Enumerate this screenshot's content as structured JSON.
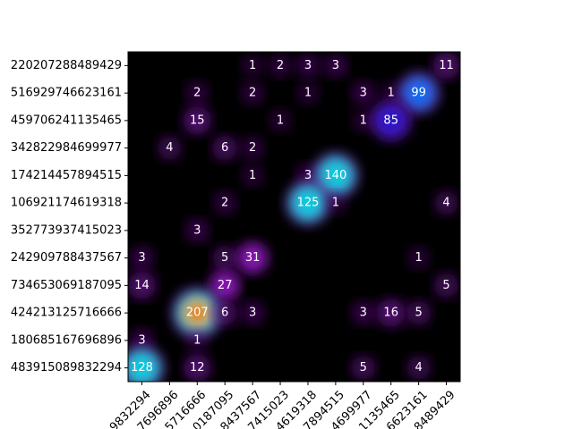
{
  "chart_data": {
    "type": "heatmap",
    "title": "",
    "xlabel": "",
    "ylabel": "",
    "colormap": "gist_ncar-like (black → purple → blue → cyan → green → yellow → red)",
    "background_color": "#000000",
    "rows": [
      "220207288489429",
      "516929746623161",
      "459706241135465",
      "342822984699977",
      "174214457894515",
      "106921174619318",
      "352773937415023",
      "242909788437567",
      "734653069187095",
      "424213125716666",
      "180685167696896",
      "483915089832294"
    ],
    "columns": [
      "9832294",
      "7696896",
      "5716666",
      "0187095",
      "8437567",
      "7415023",
      "4619318",
      "7894515",
      "4699977",
      "1135465",
      "6623161",
      "8489429"
    ],
    "cells": [
      {
        "row": 0,
        "col": 4,
        "value": 1
      },
      {
        "row": 0,
        "col": 5,
        "value": 2
      },
      {
        "row": 0,
        "col": 6,
        "value": 3
      },
      {
        "row": 0,
        "col": 7,
        "value": 3
      },
      {
        "row": 0,
        "col": 11,
        "value": 11
      },
      {
        "row": 1,
        "col": 2,
        "value": 2
      },
      {
        "row": 1,
        "col": 4,
        "value": 2
      },
      {
        "row": 1,
        "col": 6,
        "value": 1
      },
      {
        "row": 1,
        "col": 8,
        "value": 3
      },
      {
        "row": 1,
        "col": 9,
        "value": 1
      },
      {
        "row": 1,
        "col": 10,
        "value": 99
      },
      {
        "row": 2,
        "col": 2,
        "value": 15
      },
      {
        "row": 2,
        "col": 5,
        "value": 1
      },
      {
        "row": 2,
        "col": 8,
        "value": 1
      },
      {
        "row": 2,
        "col": 9,
        "value": 85
      },
      {
        "row": 3,
        "col": 1,
        "value": 4
      },
      {
        "row": 3,
        "col": 3,
        "value": 6
      },
      {
        "row": 3,
        "col": 4,
        "value": 2
      },
      {
        "row": 4,
        "col": 4,
        "value": 1
      },
      {
        "row": 4,
        "col": 6,
        "value": 3
      },
      {
        "row": 4,
        "col": 7,
        "value": 140
      },
      {
        "row": 5,
        "col": 3,
        "value": 2
      },
      {
        "row": 5,
        "col": 6,
        "value": 125
      },
      {
        "row": 5,
        "col": 7,
        "value": 1
      },
      {
        "row": 5,
        "col": 11,
        "value": 4
      },
      {
        "row": 6,
        "col": 2,
        "value": 3
      },
      {
        "row": 7,
        "col": 0,
        "value": 3
      },
      {
        "row": 7,
        "col": 3,
        "value": 5
      },
      {
        "row": 7,
        "col": 4,
        "value": 31
      },
      {
        "row": 7,
        "col": 10,
        "value": 1
      },
      {
        "row": 8,
        "col": 0,
        "value": 14
      },
      {
        "row": 8,
        "col": 3,
        "value": 27
      },
      {
        "row": 8,
        "col": 11,
        "value": 5
      },
      {
        "row": 9,
        "col": 2,
        "value": 207
      },
      {
        "row": 9,
        "col": 3,
        "value": 6
      },
      {
        "row": 9,
        "col": 4,
        "value": 3
      },
      {
        "row": 9,
        "col": 8,
        "value": 3
      },
      {
        "row": 9,
        "col": 9,
        "value": 16
      },
      {
        "row": 9,
        "col": 10,
        "value": 5
      },
      {
        "row": 10,
        "col": 0,
        "value": 3
      },
      {
        "row": 10,
        "col": 2,
        "value": 1
      },
      {
        "row": 11,
        "col": 0,
        "value": 128
      },
      {
        "row": 11,
        "col": 2,
        "value": 12
      },
      {
        "row": 11,
        "col": 8,
        "value": 5
      },
      {
        "row": 11,
        "col": 10,
        "value": 4
      }
    ]
  }
}
